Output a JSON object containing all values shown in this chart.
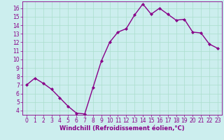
{
  "x": [
    0,
    1,
    2,
    3,
    4,
    5,
    6,
    7,
    8,
    9,
    10,
    11,
    12,
    13,
    14,
    15,
    16,
    17,
    18,
    19,
    20,
    21,
    22,
    23
  ],
  "y": [
    7.0,
    7.8,
    7.2,
    6.5,
    5.5,
    4.5,
    3.7,
    3.6,
    6.7,
    9.8,
    12.0,
    13.2,
    13.6,
    15.2,
    16.5,
    15.3,
    16.0,
    15.3,
    14.6,
    14.7,
    13.2,
    13.1,
    11.8,
    11.3
  ],
  "line_color": "#880088",
  "marker": "D",
  "marker_size": 2.0,
  "line_width": 1.0,
  "bg_color": "#cceeee",
  "grid_color": "#aaddcc",
  "xlabel": "Windchill (Refroidissement éolien,°C)",
  "xlabel_color": "#880088",
  "xlabel_fontsize": 6.0,
  "tick_color": "#880088",
  "tick_fontsize": 5.5,
  "xlim": [
    -0.5,
    23.5
  ],
  "ylim": [
    3.5,
    16.8
  ],
  "yticks": [
    4,
    5,
    6,
    7,
    8,
    9,
    10,
    11,
    12,
    13,
    14,
    15,
    16
  ],
  "xticks": [
    0,
    1,
    2,
    3,
    4,
    5,
    6,
    7,
    8,
    9,
    10,
    11,
    12,
    13,
    14,
    15,
    16,
    17,
    18,
    19,
    20,
    21,
    22,
    23
  ]
}
